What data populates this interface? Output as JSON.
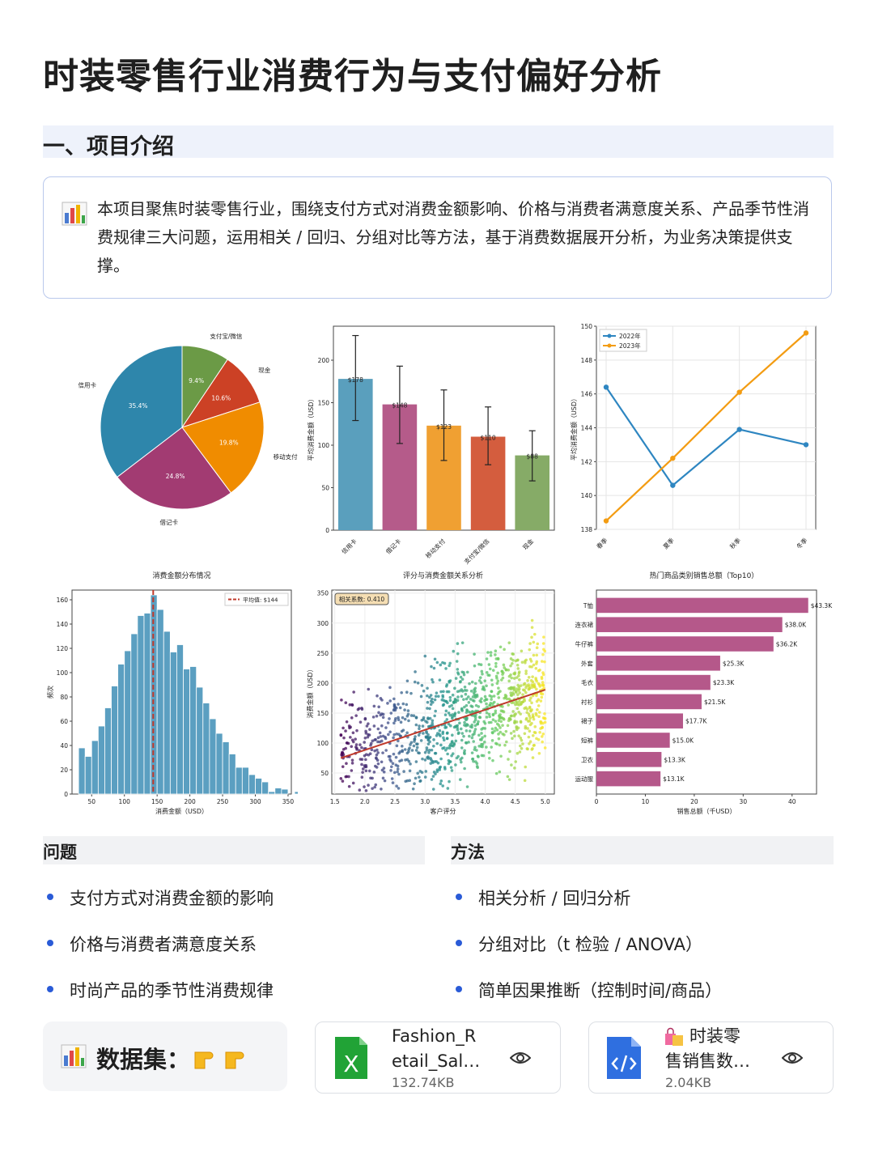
{
  "page": {
    "title": "时装零售行业消费行为与支付偏好分析",
    "section1": "一、项目介绍",
    "intro_text": "本项目聚焦时装零售行业，围绕支付方式对消费金额影响、价格与消费者满意度关系、产品季节性消费规律三大问题，运用相关 / 回归、分组对比等方法，基于消费数据展开分析，为业务决策提供支撑。",
    "intro_icon": "bar-chart-emoji-icon"
  },
  "questions": {
    "heading": "问题",
    "items": [
      "支付方式对消费金额的影响",
      "价格与消费者满意度关系",
      "时尚产品的季节性消费规律"
    ]
  },
  "methods": {
    "heading": "方法",
    "items": [
      "相关分析 / 回归分析",
      "分组对比（t 检验 / ANOVA）",
      "简单因果推断（控制时间/商品）"
    ]
  },
  "dataset": {
    "label": "数据集：",
    "icon": "bar-chart-emoji-icon",
    "pointer_icons": "pointing-hand-icon",
    "files": [
      {
        "name_line1": "Fashion_R",
        "name_line2": "etail_Sal…",
        "size": "132.74KB",
        "icon": "excel-file-icon"
      },
      {
        "name_line1": "时装零",
        "name_line2": "售销售数…",
        "size": "2.04KB",
        "icon": "code-file-icon",
        "emoji": "shopping-bags-icon"
      }
    ]
  },
  "chart_data": [
    {
      "type": "pie",
      "title": "",
      "labels": [
        "支付宝/微信",
        "现金",
        "移动支付",
        "借记卡",
        "信用卡"
      ],
      "values": [
        9.4,
        10.6,
        19.8,
        24.8,
        35.4
      ],
      "value_labels": [
        "9.4%",
        "10.6%",
        "19.8%",
        "24.8%",
        "35.4%"
      ],
      "colors": [
        "#6b9a46",
        "#cc4125",
        "#f08c00",
        "#a23b72",
        "#2e86ab"
      ]
    },
    {
      "type": "bar",
      "title": "",
      "ylabel": "平均消费金额（USD）",
      "categories": [
        "信用卡",
        "借记卡",
        "移动支付",
        "支付宝/微信",
        "现金"
      ],
      "values": [
        178,
        148,
        123,
        110,
        88
      ],
      "value_labels": [
        "$178",
        "$148",
        "$123",
        "$110",
        "$88"
      ],
      "error_low": [
        129,
        102,
        82,
        77,
        58
      ],
      "error_high": [
        229,
        193,
        165,
        145,
        117
      ],
      "colors": [
        "#5a9fbd",
        "#b55b8a",
        "#f0a032",
        "#d45d3e",
        "#86ab67"
      ],
      "ylim": [
        0,
        240
      ],
      "yticks": [
        0,
        50,
        100,
        150,
        200
      ]
    },
    {
      "type": "line",
      "title": "",
      "ylabel": "平均消费金额（USD）",
      "categories": [
        "春季",
        "夏季",
        "秋季",
        "冬季"
      ],
      "series": [
        {
          "name": "2022年",
          "values": [
            146.4,
            140.6,
            143.9,
            143.0
          ],
          "color": "#2e86c1"
        },
        {
          "name": "2023年",
          "values": [
            138.5,
            142.2,
            146.1,
            149.6
          ],
          "color": "#f39c12"
        }
      ],
      "ylim": [
        138,
        150
      ],
      "yticks": [
        138,
        140,
        142,
        144,
        146,
        148,
        150
      ],
      "legend": "top-left",
      "grid": true
    },
    {
      "type": "histogram",
      "title": "消费金额分布情况",
      "xlabel": "消费金额（USD）",
      "ylabel": "频次",
      "bin_start": 30,
      "bin_width": 10,
      "counts": [
        38,
        31,
        44,
        56,
        71,
        89,
        107,
        118,
        132,
        147,
        149,
        164,
        152,
        134,
        117,
        123,
        103,
        105,
        88,
        75,
        62,
        50,
        43,
        33,
        22,
        22,
        16,
        13,
        10,
        2,
        5,
        4,
        0,
        2
      ],
      "mean_label": "平均值: $144",
      "mean": 144,
      "xlim": [
        20,
        355
      ],
      "ylim": [
        0,
        168
      ],
      "xticks": [
        50,
        100,
        150,
        200,
        250,
        300,
        350
      ],
      "yticks": [
        0,
        20,
        40,
        60,
        80,
        100,
        120,
        140,
        160
      ],
      "color": "#5b9fc1"
    },
    {
      "type": "scatter",
      "title": "评分与消费金额关系分析",
      "xlabel": "客户评分",
      "ylabel": "消费金额（USD）",
      "annotation": "相关系数: 0.410",
      "xlim": [
        1.45,
        5.15
      ],
      "ylim": [
        15,
        355
      ],
      "xticks": [
        1.5,
        2.0,
        2.5,
        3.0,
        3.5,
        4.0,
        4.5,
        5.0
      ],
      "yticks": [
        50,
        100,
        150,
        200,
        250,
        300,
        350
      ],
      "trend_line": [
        [
          1.6,
          75
        ],
        [
          5.0,
          189
        ]
      ],
      "trend_color": "#c0392b"
    },
    {
      "type": "bar-horizontal",
      "title": "热门商品类别销售总额（Top10）",
      "xlabel": "销售总额（千USD）",
      "categories": [
        "T恤",
        "连衣裙",
        "牛仔裤",
        "外套",
        "毛衣",
        "衬衫",
        "裙子",
        "短裤",
        "卫衣",
        "运动服"
      ],
      "values": [
        43.3,
        38.0,
        36.2,
        25.3,
        23.3,
        21.5,
        17.7,
        15.0,
        13.3,
        13.1
      ],
      "value_labels": [
        "$43.3K",
        "$38.0K",
        "$36.2K",
        "$25.3K",
        "$23.3K",
        "$21.5K",
        "$17.7K",
        "$15.0K",
        "$13.3K",
        "$13.1K"
      ],
      "xlim": [
        0,
        45
      ],
      "xticks": [
        0,
        10,
        20,
        30,
        40
      ],
      "color": "#b5588a"
    }
  ]
}
